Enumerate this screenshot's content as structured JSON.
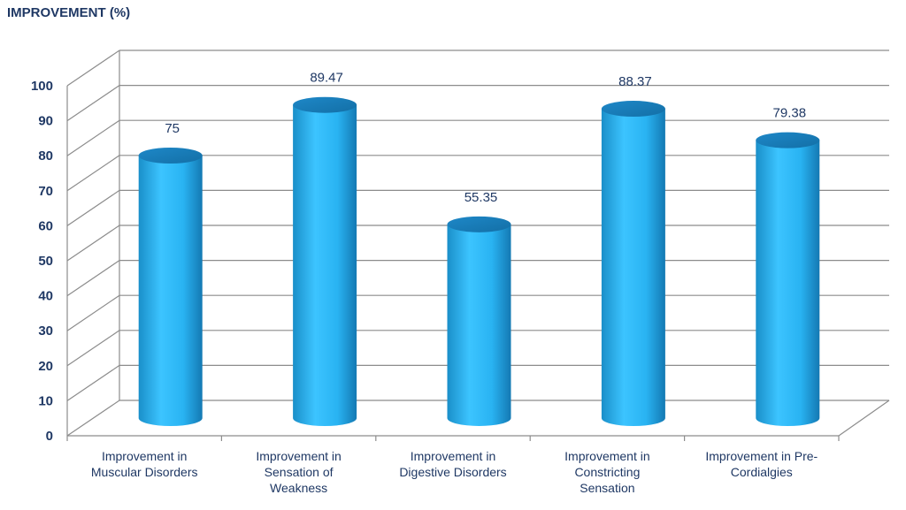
{
  "chart_data": {
    "type": "bar",
    "title": "IMPROVEMENT (%)",
    "xlabel": "",
    "ylabel": "",
    "ylim": [
      0,
      100
    ],
    "yticks": [
      0,
      10,
      20,
      30,
      40,
      50,
      60,
      70,
      80,
      90,
      100
    ],
    "grid": true,
    "legend": "none",
    "bar_color": "#29b6f6",
    "categories": [
      "Improvement in Muscular Disorders",
      "Improvement in Sensation of Weakness",
      "Improvement in Digestive Disorders",
      "Improvement in Constricting Sensation",
      "Improvement in Pre-Cordialgies"
    ],
    "category_lines": [
      [
        "Improvement in",
        "Muscular Disorders"
      ],
      [
        "Improvement in",
        "Sensation of",
        "Weakness"
      ],
      [
        "Improvement in",
        "Digestive Disorders"
      ],
      [
        "Improvement in",
        "Constricting",
        "Sensation"
      ],
      [
        "Improvement in Pre-",
        "Cordialgies"
      ]
    ],
    "values": [
      75,
      89.47,
      55.35,
      88.37,
      79.38
    ],
    "data_labels": [
      "75",
      "89.47",
      "55.35",
      "88.37",
      "79.38"
    ]
  }
}
